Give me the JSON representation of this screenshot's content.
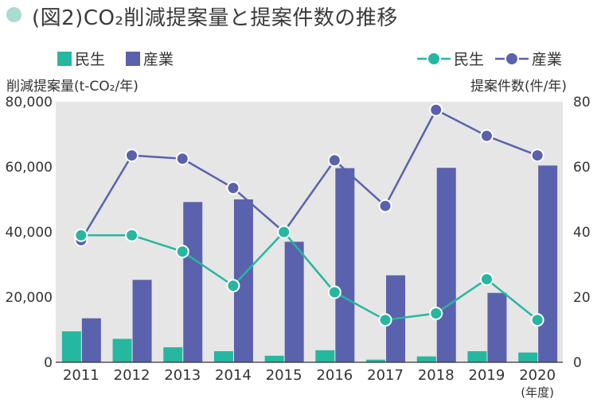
{
  "title": "(図2)CO₂削減提案量と提案件数の推移",
  "legend": {
    "bar_minsei": "民生",
    "bar_sangyo": "産業",
    "line_minsei": "民生",
    "line_sangyo": "産業"
  },
  "colors": {
    "minsei": "#26b7a0",
    "sangyo": "#5a62ad",
    "plot_bg": "#e6e6e6",
    "title_dot": "#a8dcd0"
  },
  "chart_data": {
    "type": "bar",
    "categories": [
      "2011",
      "2012",
      "2013",
      "2014",
      "2015",
      "2016",
      "2017",
      "2018",
      "2019",
      "2020"
    ],
    "x_unit": "(年度)",
    "y_left": {
      "label": "削減提案量(t-CO₂/年)",
      "range": [
        0,
        80000
      ],
      "ticks": [
        "0",
        "20,000",
        "40,000",
        "60,000",
        "80,000"
      ]
    },
    "y_right": {
      "label": "提案件数(件/年)",
      "range": [
        0,
        80
      ],
      "ticks": [
        "0",
        "20",
        "40",
        "60",
        "80"
      ]
    },
    "bar_series": [
      {
        "name": "民生",
        "axis": "left",
        "values": [
          9500,
          7200,
          4600,
          3400,
          2000,
          3700,
          800,
          1800,
          3400,
          3000
        ]
      },
      {
        "name": "産業",
        "axis": "left",
        "values": [
          13500,
          25300,
          49200,
          50000,
          37000,
          59600,
          26700,
          59700,
          21300,
          60400
        ]
      }
    ],
    "line_series": [
      {
        "name": "民生",
        "axis": "right",
        "values": [
          39,
          39,
          34,
          23.5,
          40,
          21.5,
          13,
          15,
          25.5,
          13
        ]
      },
      {
        "name": "産業",
        "axis": "right",
        "values": [
          37.5,
          63.5,
          62.5,
          53.5,
          40,
          62,
          48,
          77.5,
          69.5,
          63.5
        ]
      }
    ],
    "grid": false,
    "legend_position": "top"
  }
}
